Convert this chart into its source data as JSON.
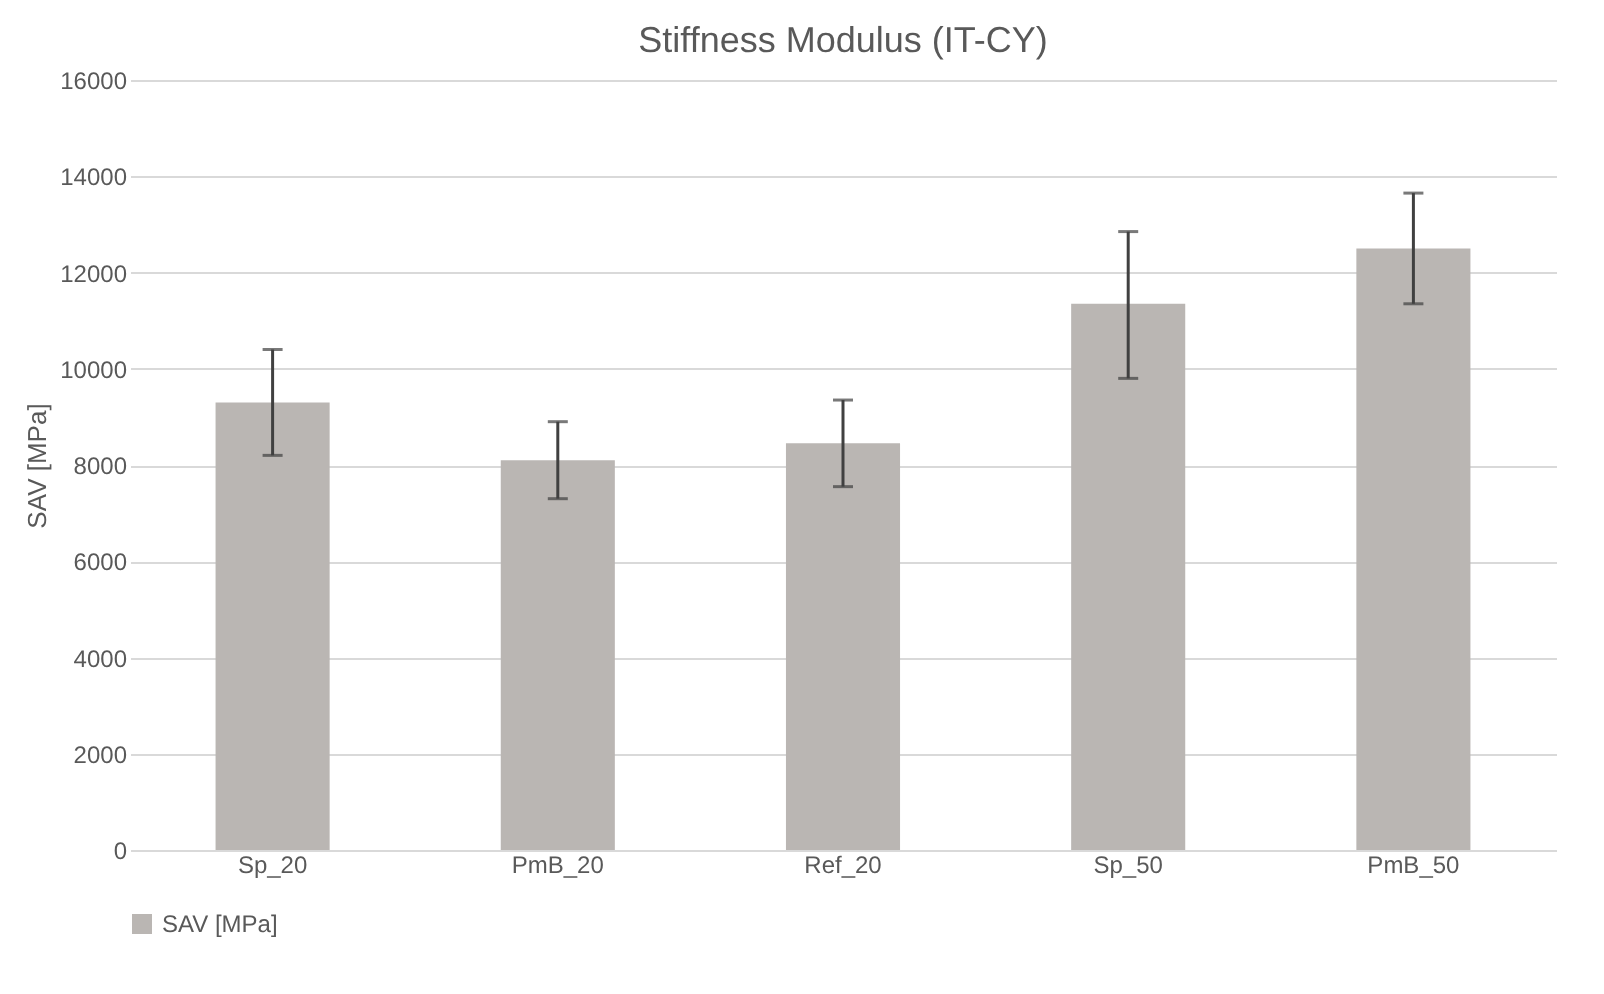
{
  "chart_data": {
    "type": "bar",
    "title": "Stiffness Modulus (IT-CY)",
    "ylabel": "SAV [MPa]",
    "categories": [
      "Sp_20",
      "PmB_20",
      "Ref_20",
      "Sp_50",
      "PmB_50"
    ],
    "series": [
      {
        "name": "SAV [MPa]",
        "color": "#bab6b3",
        "values": [
          9300,
          8100,
          8450,
          11350,
          12500
        ],
        "errors": [
          [
            8200,
            10400
          ],
          [
            7300,
            8900
          ],
          [
            7550,
            9350
          ],
          [
            9800,
            12850
          ],
          [
            11350,
            13650
          ]
        ]
      }
    ],
    "ylim": [
      0,
      16000
    ],
    "yticks": [
      0,
      2000,
      4000,
      6000,
      8000,
      10000,
      12000,
      14000,
      16000
    ],
    "grid": "y",
    "legend": "bottom"
  }
}
